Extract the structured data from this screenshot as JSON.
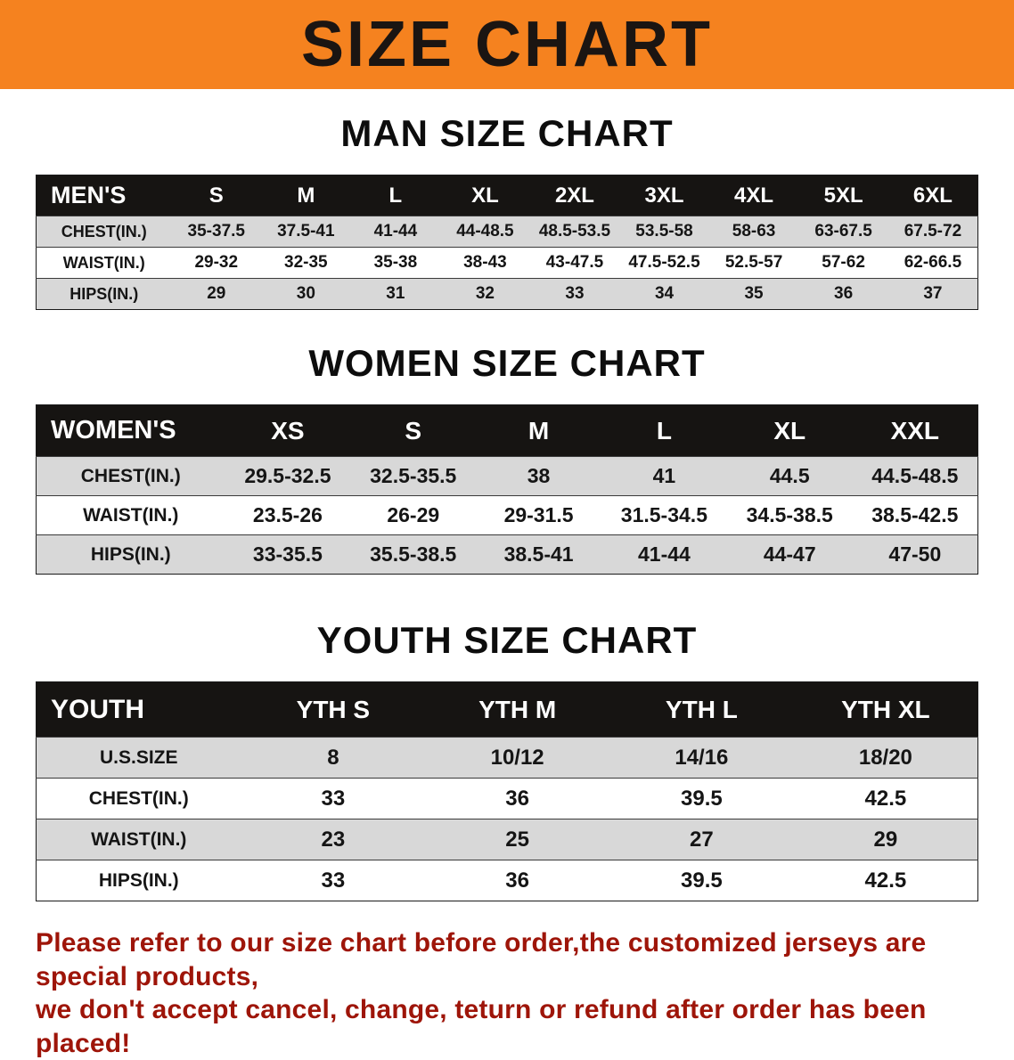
{
  "banner": {
    "title": "SIZE CHART"
  },
  "sections": [
    {
      "heading": "MAN SIZE CHART",
      "table": {
        "header": [
          "MEN'S",
          "S",
          "M",
          "L",
          "XL",
          "2XL",
          "3XL",
          "4XL",
          "5XL",
          "6XL"
        ],
        "rows": [
          [
            "CHEST(IN.)",
            "35-37.5",
            "37.5-41",
            "41-44",
            "44-48.5",
            "48.5-53.5",
            "53.5-58",
            "58-63",
            "63-67.5",
            "67.5-72"
          ],
          [
            "WAIST(IN.)",
            "29-32",
            "32-35",
            "35-38",
            "38-43",
            "43-47.5",
            "47.5-52.5",
            "52.5-57",
            "57-62",
            "62-66.5"
          ],
          [
            "HIPS(IN.)",
            "29",
            "30",
            "31",
            "32",
            "33",
            "34",
            "35",
            "36",
            "37"
          ]
        ]
      }
    },
    {
      "heading": "WOMEN SIZE CHART",
      "table": {
        "header": [
          "WOMEN'S",
          "XS",
          "S",
          "M",
          "L",
          "XL",
          "XXL"
        ],
        "rows": [
          [
            "CHEST(IN.)",
            "29.5-32.5",
            "32.5-35.5",
            "38",
            "41",
            "44.5",
            "44.5-48.5"
          ],
          [
            "WAIST(IN.)",
            "23.5-26",
            "26-29",
            "29-31.5",
            "31.5-34.5",
            "34.5-38.5",
            "38.5-42.5"
          ],
          [
            "HIPS(IN.)",
            "33-35.5",
            "35.5-38.5",
            "38.5-41",
            "41-44",
            "44-47",
            "47-50"
          ]
        ]
      }
    },
    {
      "heading": "YOUTH SIZE CHART",
      "table": {
        "header": [
          "YOUTH",
          "YTH S",
          "YTH M",
          "YTH L",
          "YTH XL"
        ],
        "rows": [
          [
            "U.S.SIZE",
            "8",
            "10/12",
            "14/16",
            "18/20"
          ],
          [
            "CHEST(IN.)",
            "33",
            "36",
            "39.5",
            "42.5"
          ],
          [
            "WAIST(IN.)",
            "23",
            "25",
            "27",
            "29"
          ],
          [
            "HIPS(IN.)",
            "33",
            "36",
            "39.5",
            "42.5"
          ]
        ]
      }
    }
  ],
  "disclaimer": {
    "lines": [
      "Please refer to our size chart before order,the customized jerseys are special products,",
      "we don't accept cancel, change, teturn or refund after order has been placed!"
    ],
    "color": "#9e1509"
  },
  "colors": {
    "banner_bg": "#f5821f",
    "table_header_bg": "#161412",
    "row_stripe": "#d8d8d8"
  }
}
